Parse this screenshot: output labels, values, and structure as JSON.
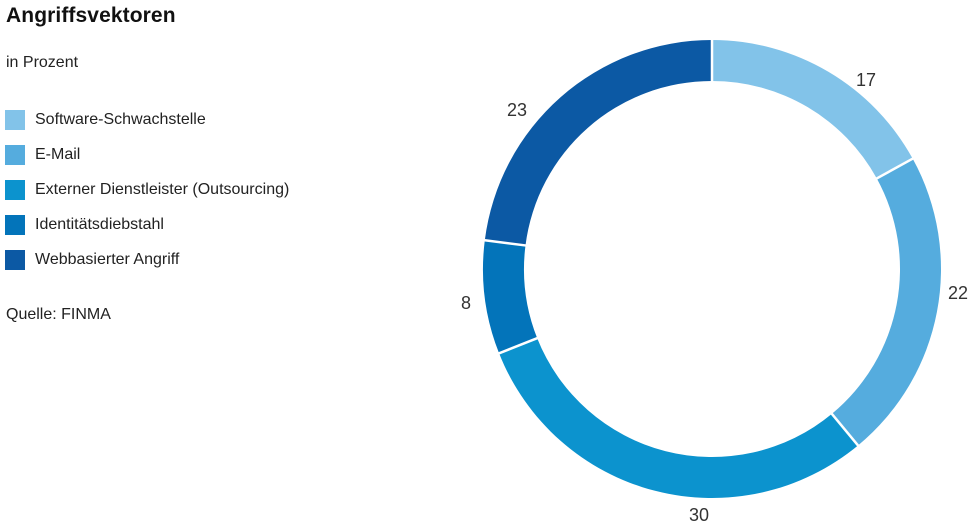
{
  "header": {
    "title": "Angriffsvektoren",
    "subtitle": "in Prozent"
  },
  "source": {
    "label": "Quelle: FINMA"
  },
  "chart_data": {
    "type": "pie",
    "subtype": "donut",
    "title": "Angriffsvektoren",
    "subtitle": "in Prozent",
    "unit": "%",
    "categories": [
      "Software-Schwachstelle",
      "E-Mail",
      "Externer Dienstleister (Outsourcing)",
      "Identitätsdiebstahl",
      "Webbasierter Angriff"
    ],
    "values": [
      17,
      22,
      30,
      8,
      23
    ],
    "colors": [
      "#82C3E9",
      "#55ACDE",
      "#0C93CE",
      "#0374BA",
      "#0C59A4"
    ],
    "start_angle_deg": 0,
    "direction": "clockwise",
    "legend_position": "left",
    "source": "Quelle: FINMA"
  }
}
